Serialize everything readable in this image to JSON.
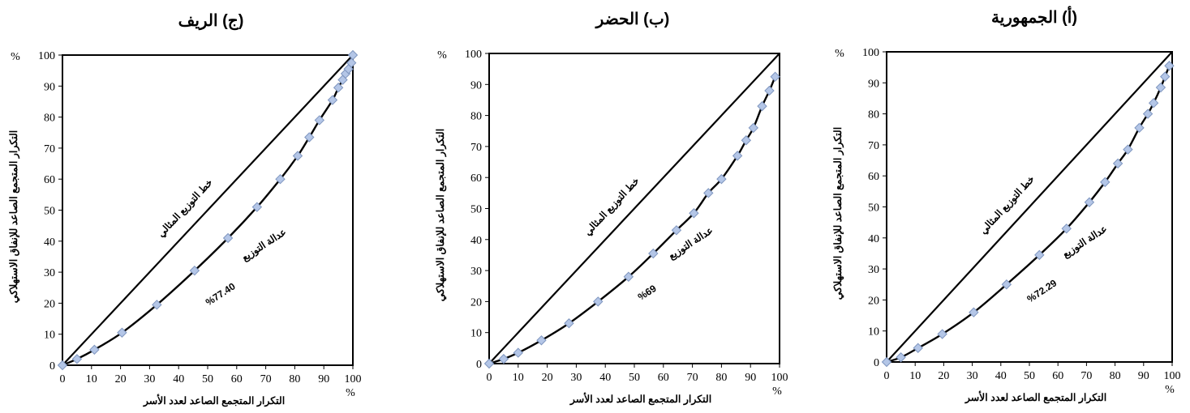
{
  "chart_data": [
    {
      "type": "line",
      "title": "(ج) الريف",
      "xlabel": "التكرار المتجمع الصاعد لعدد الأسر",
      "ylabel": "التكرار المتجمع الصاعد للإنفاق الاستهلاكي",
      "x_unit": "%",
      "y_unit": "%",
      "xlim": [
        0,
        100
      ],
      "ylim": [
        0,
        100
      ],
      "x_ticks": [
        "0",
        "10",
        "20",
        "30",
        "40",
        "50",
        "60",
        "70",
        "80",
        "90",
        "100"
      ],
      "y_ticks": [
        "0",
        "10",
        "20",
        "30",
        "40",
        "50",
        "60",
        "70",
        "80",
        "90",
        "100"
      ],
      "equality_line_label": "خط التوزيع المثالي",
      "curve_label": "عدالة التوزيع",
      "index_label": "%77.40",
      "series": [
        {
          "x": [
            0,
            5,
            11,
            20.5,
            32.5,
            45.5,
            57,
            67,
            75,
            81,
            85,
            88.5,
            93,
            95,
            96.5,
            97.5,
            98.5,
            99.5,
            100
          ],
          "y": [
            0,
            2,
            5,
            10.5,
            19.5,
            30.5,
            41,
            51,
            60,
            67.5,
            73.5,
            79,
            85.5,
            89.5,
            92,
            94,
            95.5,
            97.5,
            100
          ]
        }
      ]
    },
    {
      "type": "line",
      "title": "(ب) الحضر",
      "xlabel": "التكرار المتجمع الصاعد لعدد الأسر",
      "ylabel": "التكرار المتجمع الصاعد للإنفاق الاستهلاكي",
      "x_unit": "%",
      "y_unit": "%",
      "xlim": [
        0,
        100
      ],
      "ylim": [
        0,
        100
      ],
      "x_ticks": [
        "0",
        "10",
        "20",
        "30",
        "40",
        "50",
        "60",
        "70",
        "80",
        "90",
        "100"
      ],
      "y_ticks": [
        "0",
        "10",
        "20",
        "30",
        "40",
        "50",
        "60",
        "70",
        "80",
        "90",
        "100"
      ],
      "equality_line_label": "خط التوزيع المثالي",
      "curve_label": "عدالة التوزيع",
      "index_label": "%69",
      "series": [
        {
          "x": [
            0,
            5,
            10,
            18,
            27.5,
            37.5,
            48,
            56.5,
            64.5,
            70.5,
            75.5,
            80,
            85.5,
            88.5,
            91,
            94,
            96.5,
            98.5
          ],
          "y": [
            0,
            1.5,
            3.5,
            7.5,
            13,
            20,
            28,
            35.5,
            43,
            48.5,
            55,
            59.5,
            67,
            72,
            76,
            83,
            88,
            92.5
          ]
        }
      ]
    },
    {
      "type": "line",
      "title": "(أ) الجمهورية",
      "xlabel": "التكرار المتجمع الصاعد لعدد الأسر",
      "ylabel": "التكرار المتجمع الصاعد للإنفاق الاستهلاكي",
      "x_unit": "%",
      "y_unit": "%",
      "xlim": [
        0,
        100
      ],
      "ylim": [
        0,
        100
      ],
      "x_ticks": [
        "0",
        "10",
        "20",
        "30",
        "40",
        "50",
        "60",
        "70",
        "80",
        "90",
        "100"
      ],
      "y_ticks": [
        "0",
        "10",
        "20",
        "30",
        "40",
        "50",
        "60",
        "70",
        "80",
        "90",
        "100"
      ],
      "equality_line_label": "خط التوزيع المثالي",
      "curve_label": "عدالة التوزيع",
      "index_label": "%72.29",
      "series": [
        {
          "x": [
            0,
            5,
            11,
            19.5,
            30.5,
            42,
            53.5,
            63,
            71,
            76.5,
            81,
            84.5,
            88.5,
            91.5,
            93.5,
            96,
            97.5,
            99
          ],
          "y": [
            0,
            1.5,
            4.5,
            9,
            16,
            25,
            34.5,
            43,
            51.5,
            58,
            64,
            68.5,
            75.5,
            80,
            83.5,
            88.5,
            92,
            95.5
          ]
        }
      ]
    }
  ],
  "colors": {
    "marker_fill": "#b4c6e7",
    "marker_stroke": "#7f96bf",
    "line": "#000000"
  }
}
